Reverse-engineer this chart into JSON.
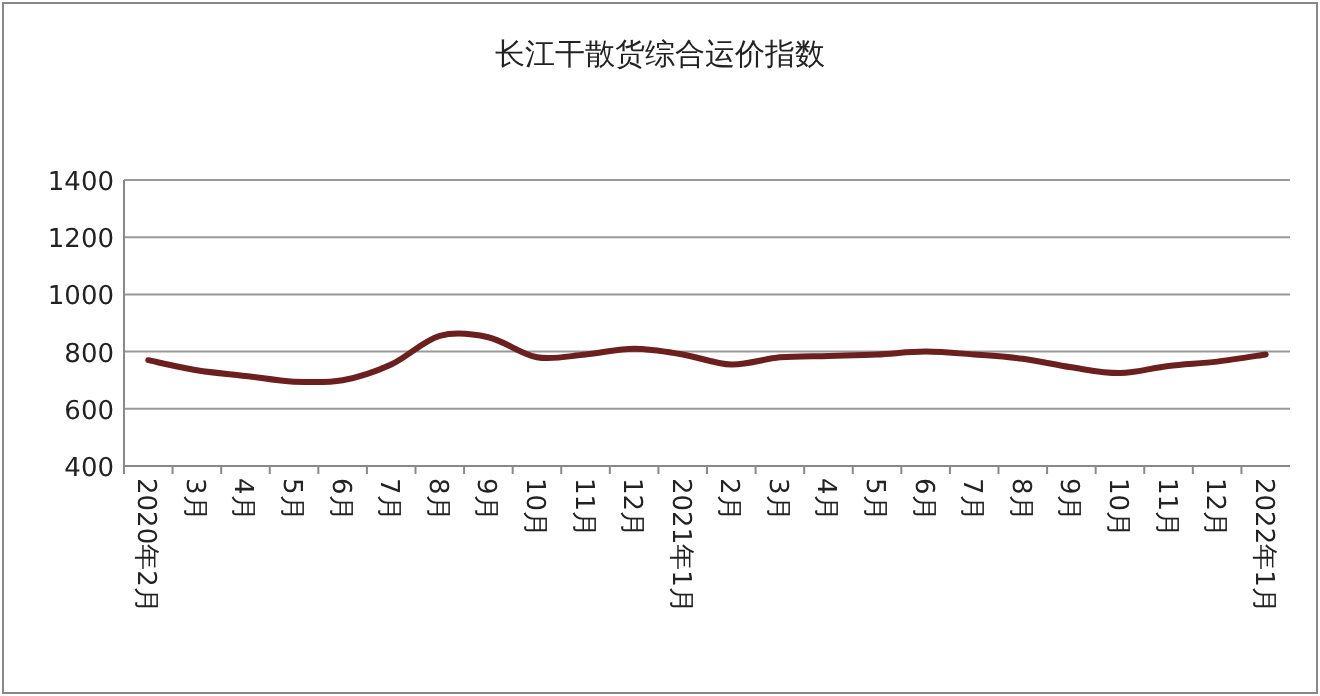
{
  "chart_data": {
    "type": "line",
    "title": "长江干散货综合运价指数",
    "categories": [
      "2020年2月",
      "3月",
      "4月",
      "5月",
      "6月",
      "7月",
      "8月",
      "9月",
      "10月",
      "11月",
      "12月",
      "2021年1月",
      "2月",
      "3月",
      "4月",
      "5月",
      "6月",
      "7月",
      "8月",
      "9月",
      "10月",
      "11月",
      "12月",
      "2022年1月"
    ],
    "series": [
      {
        "color": "#6b1f1f",
        "values": [
          770,
          735,
          715,
          695,
          700,
          755,
          855,
          850,
          780,
          790,
          810,
          790,
          755,
          780,
          785,
          790,
          800,
          790,
          775,
          745,
          725,
          750,
          765,
          790
        ]
      }
    ],
    "ylim": [
      400,
      1400
    ],
    "yticks": [
      400,
      600,
      800,
      1000,
      1200,
      1400
    ],
    "grid": "y",
    "marker": "none",
    "line_style": "solid"
  }
}
